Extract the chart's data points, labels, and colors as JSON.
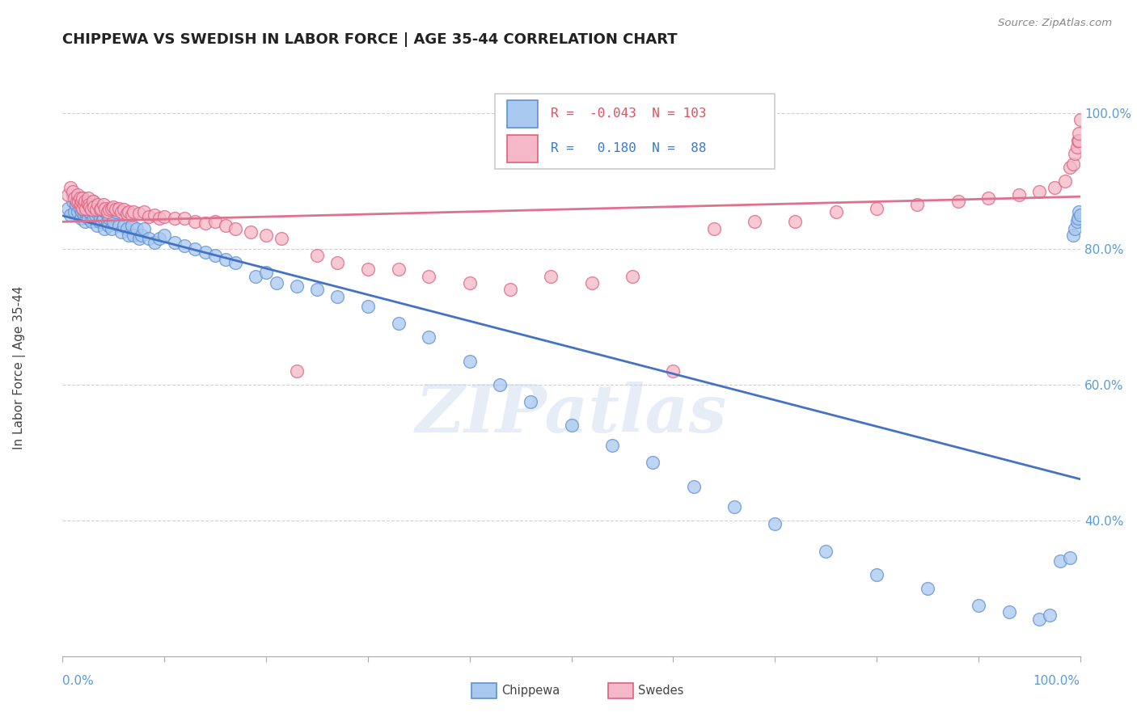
{
  "title": "CHIPPEWA VS SWEDISH IN LABOR FORCE | AGE 35-44 CORRELATION CHART",
  "source": "Source: ZipAtlas.com",
  "ylabel": "In Labor Force | Age 35-44",
  "r_chippewa": -0.043,
  "n_chippewa": 103,
  "r_swedes": 0.18,
  "n_swedes": 88,
  "chippewa_fill": "#a8c8f0",
  "chippewa_edge": "#6090d0",
  "swedes_fill": "#f5b8c8",
  "swedes_edge": "#e06080",
  "chippewa_line_color": "#4472c4",
  "swedes_line_color": "#e07090",
  "right_axis_color": "#5b9bd5",
  "background_color": "#ffffff",
  "watermark": "ZIPatlas",
  "ylim_low": 0.2,
  "ylim_high": 1.05,
  "chippewa_x": [
    0.005,
    0.008,
    0.01,
    0.01,
    0.012,
    0.013,
    0.015,
    0.015,
    0.016,
    0.017,
    0.018,
    0.018,
    0.019,
    0.02,
    0.02,
    0.021,
    0.021,
    0.022,
    0.022,
    0.023,
    0.023,
    0.024,
    0.025,
    0.025,
    0.026,
    0.027,
    0.028,
    0.028,
    0.03,
    0.03,
    0.031,
    0.032,
    0.033,
    0.034,
    0.035,
    0.036,
    0.037,
    0.038,
    0.039,
    0.04,
    0.041,
    0.042,
    0.044,
    0.045,
    0.046,
    0.048,
    0.05,
    0.052,
    0.055,
    0.058,
    0.06,
    0.063,
    0.065,
    0.068,
    0.07,
    0.073,
    0.075,
    0.078,
    0.08,
    0.085,
    0.09,
    0.095,
    0.1,
    0.11,
    0.12,
    0.13,
    0.14,
    0.15,
    0.16,
    0.17,
    0.19,
    0.2,
    0.21,
    0.23,
    0.25,
    0.27,
    0.3,
    0.33,
    0.36,
    0.4,
    0.43,
    0.46,
    0.5,
    0.54,
    0.58,
    0.62,
    0.66,
    0.7,
    0.75,
    0.8,
    0.85,
    0.9,
    0.93,
    0.96,
    0.97,
    0.98,
    0.99,
    0.993,
    0.995,
    0.997,
    0.998,
    0.999,
    1.0
  ],
  "chippewa_y": [
    0.86,
    0.85,
    0.88,
    0.87,
    0.855,
    0.865,
    0.875,
    0.855,
    0.87,
    0.86,
    0.845,
    0.87,
    0.855,
    0.875,
    0.86,
    0.85,
    0.865,
    0.855,
    0.84,
    0.87,
    0.855,
    0.86,
    0.87,
    0.845,
    0.855,
    0.865,
    0.85,
    0.84,
    0.86,
    0.87,
    0.845,
    0.85,
    0.855,
    0.835,
    0.86,
    0.84,
    0.845,
    0.855,
    0.84,
    0.845,
    0.83,
    0.855,
    0.84,
    0.835,
    0.845,
    0.83,
    0.84,
    0.855,
    0.835,
    0.825,
    0.835,
    0.83,
    0.82,
    0.835,
    0.82,
    0.83,
    0.815,
    0.82,
    0.83,
    0.815,
    0.81,
    0.815,
    0.82,
    0.81,
    0.805,
    0.8,
    0.795,
    0.79,
    0.785,
    0.78,
    0.76,
    0.765,
    0.75,
    0.745,
    0.74,
    0.73,
    0.715,
    0.69,
    0.67,
    0.635,
    0.6,
    0.575,
    0.54,
    0.51,
    0.485,
    0.45,
    0.42,
    0.395,
    0.355,
    0.32,
    0.3,
    0.275,
    0.265,
    0.255,
    0.26,
    0.34,
    0.345,
    0.82,
    0.83,
    0.84,
    0.845,
    0.855,
    0.85
  ],
  "swedes_x": [
    0.005,
    0.008,
    0.01,
    0.012,
    0.014,
    0.015,
    0.016,
    0.017,
    0.018,
    0.019,
    0.02,
    0.02,
    0.021,
    0.022,
    0.023,
    0.024,
    0.025,
    0.026,
    0.027,
    0.028,
    0.03,
    0.031,
    0.033,
    0.035,
    0.037,
    0.038,
    0.04,
    0.042,
    0.044,
    0.046,
    0.048,
    0.05,
    0.052,
    0.055,
    0.058,
    0.06,
    0.063,
    0.065,
    0.068,
    0.07,
    0.075,
    0.08,
    0.085,
    0.09,
    0.095,
    0.1,
    0.11,
    0.12,
    0.13,
    0.14,
    0.15,
    0.16,
    0.17,
    0.185,
    0.2,
    0.215,
    0.23,
    0.25,
    0.27,
    0.3,
    0.33,
    0.36,
    0.4,
    0.44,
    0.48,
    0.52,
    0.56,
    0.6,
    0.64,
    0.68,
    0.72,
    0.76,
    0.8,
    0.84,
    0.88,
    0.91,
    0.94,
    0.96,
    0.975,
    0.985,
    0.99,
    0.993,
    0.995,
    0.997,
    0.998,
    0.999,
    0.999,
    1.0
  ],
  "swedes_y": [
    0.88,
    0.89,
    0.885,
    0.875,
    0.87,
    0.88,
    0.87,
    0.875,
    0.865,
    0.87,
    0.86,
    0.875,
    0.865,
    0.87,
    0.86,
    0.868,
    0.875,
    0.865,
    0.862,
    0.858,
    0.87,
    0.862,
    0.858,
    0.865,
    0.858,
    0.86,
    0.865,
    0.86,
    0.855,
    0.858,
    0.86,
    0.862,
    0.858,
    0.86,
    0.855,
    0.858,
    0.852,
    0.855,
    0.85,
    0.855,
    0.852,
    0.855,
    0.848,
    0.85,
    0.845,
    0.848,
    0.845,
    0.845,
    0.84,
    0.838,
    0.84,
    0.835,
    0.83,
    0.825,
    0.82,
    0.815,
    0.62,
    0.79,
    0.78,
    0.77,
    0.77,
    0.76,
    0.75,
    0.74,
    0.76,
    0.75,
    0.76,
    0.62,
    0.83,
    0.84,
    0.84,
    0.855,
    0.86,
    0.865,
    0.87,
    0.875,
    0.88,
    0.885,
    0.89,
    0.9,
    0.92,
    0.925,
    0.94,
    0.95,
    0.96,
    0.96,
    0.97,
    0.99
  ]
}
